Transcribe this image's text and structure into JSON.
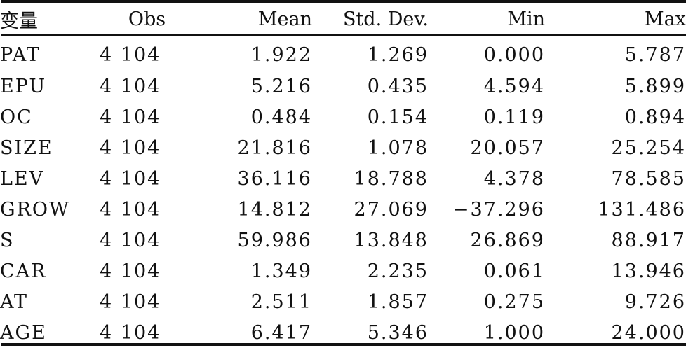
{
  "table": {
    "headers": [
      "变量",
      "Obs",
      "Mean",
      "Std. Dev.",
      "Min",
      "Max"
    ],
    "rows": [
      {
        "variable": "PAT",
        "obs": "4 104",
        "mean": "1.922",
        "sd": "1.269",
        "min": "0.000",
        "max": "5.787"
      },
      {
        "variable": "EPU",
        "obs": "4 104",
        "mean": "5.216",
        "sd": "0.435",
        "min": "4.594",
        "max": "5.899"
      },
      {
        "variable": "OC",
        "obs": "4 104",
        "mean": "0.484",
        "sd": "0.154",
        "min": "0.119",
        "max": "0.894"
      },
      {
        "variable": "SIZE",
        "obs": "4 104",
        "mean": "21.816",
        "sd": "1.078",
        "min": "20.057",
        "max": "25.254"
      },
      {
        "variable": "LEV",
        "obs": "4 104",
        "mean": "36.116",
        "sd": "18.788",
        "min": "4.378",
        "max": "78.585"
      },
      {
        "variable": "GROW",
        "obs": "4 104",
        "mean": "14.812",
        "sd": "27.069",
        "min": "−37.296",
        "max": "131.486"
      },
      {
        "variable": "S",
        "obs": "4 104",
        "mean": "59.986",
        "sd": "13.848",
        "min": "26.869",
        "max": "88.917"
      },
      {
        "variable": "CAR",
        "obs": "4 104",
        "mean": "1.349",
        "sd": "2.235",
        "min": "0.061",
        "max": "13.946"
      },
      {
        "variable": "AT",
        "obs": "4 104",
        "mean": "2.511",
        "sd": "1.857",
        "min": "0.275",
        "max": "9.726"
      },
      {
        "variable": "AGE",
        "obs": "4 104",
        "mean": "6.417",
        "sd": "5.346",
        "min": "1.000",
        "max": "24.000"
      }
    ]
  }
}
